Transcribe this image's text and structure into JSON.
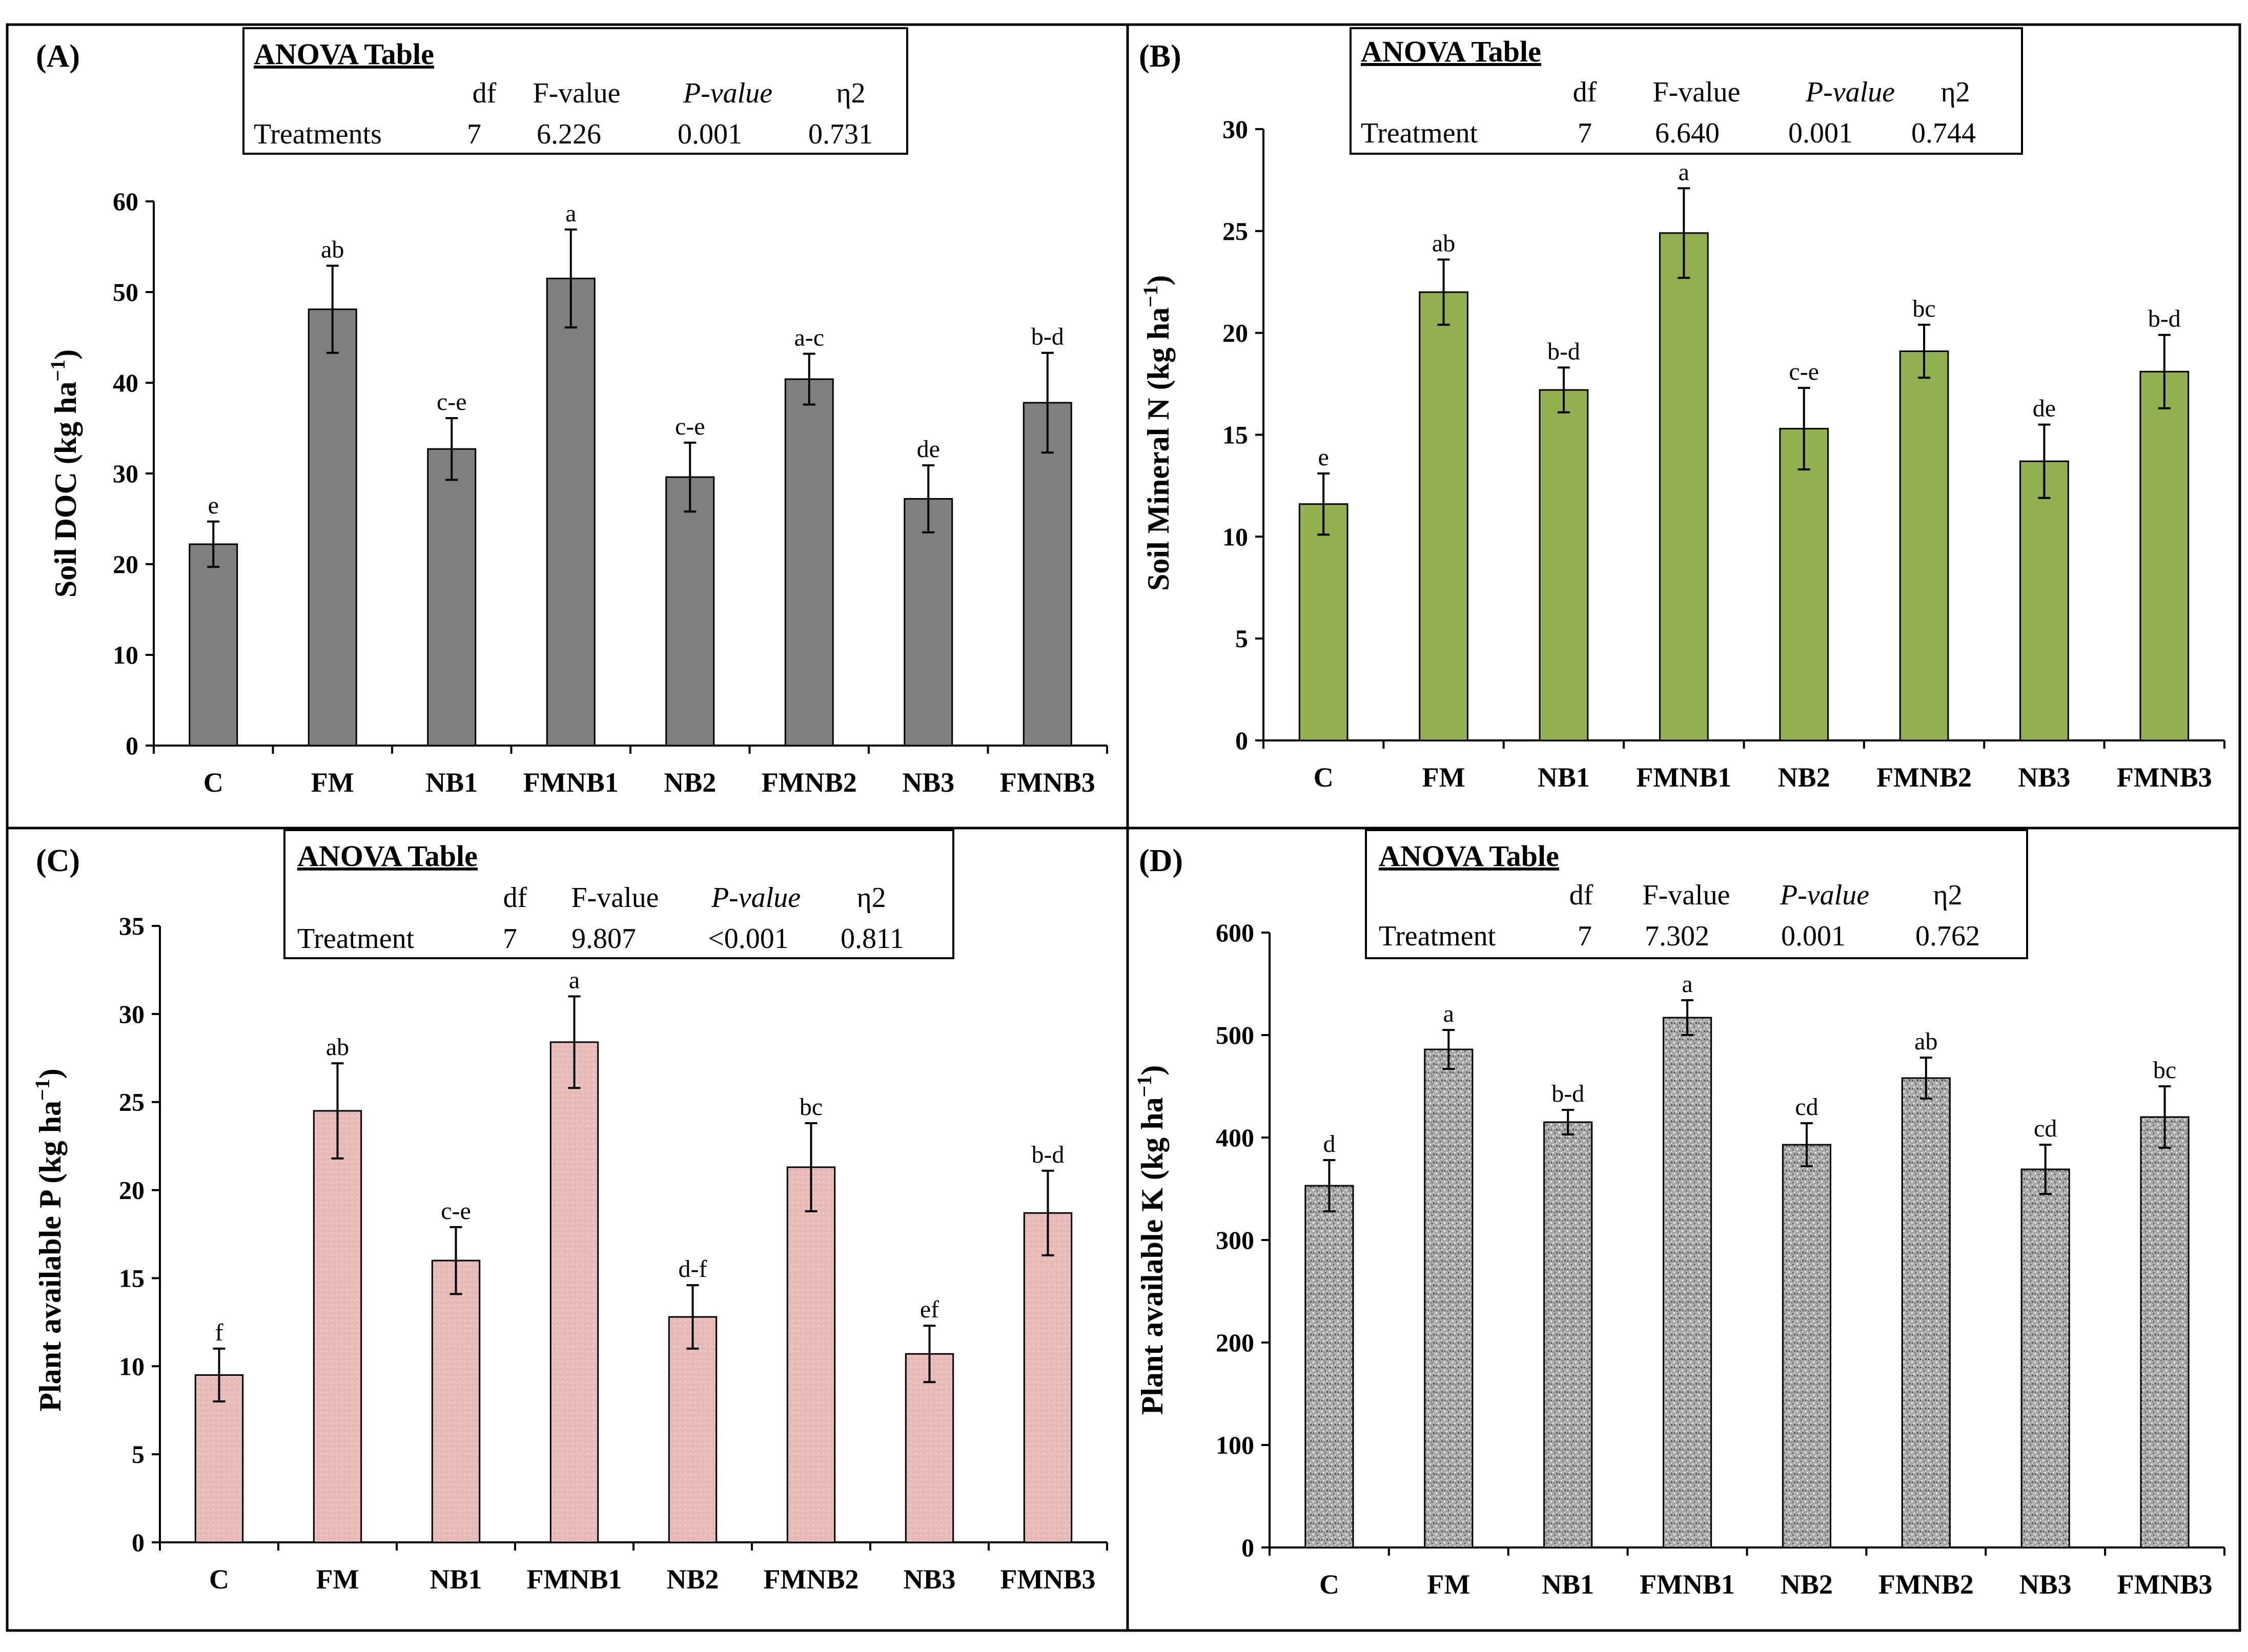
{
  "figure": {
    "panels": [
      {
        "letter": "(A)",
        "anova": {
          "title": "ANOVA Table",
          "headers": [
            "df",
            "F-value",
            "P-value",
            "η2"
          ],
          "row": [
            "Treatments",
            "7",
            "6.226",
            "0.001",
            "0.731"
          ]
        },
        "ylabel_main": "Soil DOC (kg ha",
        "ylabel_exp": "−1",
        "ylabel_tail": ")",
        "bar_color": "#7f7f7f",
        "texture": "solid"
      },
      {
        "letter": "(B)",
        "anova": {
          "title": "ANOVA Table",
          "headers": [
            "df",
            "F-value",
            "P-value",
            "η2"
          ],
          "row": [
            "Treatment",
            "7",
            "6.640",
            "0.001",
            "0.744"
          ]
        },
        "ylabel_main": "Soil Mineral N (kg ha",
        "ylabel_exp": "−1",
        "ylabel_tail": ")",
        "bar_color": "#92b050",
        "texture": "solid"
      },
      {
        "letter": "(C)",
        "anova": {
          "title": "ANOVA Table",
          "headers": [
            "df",
            "F-value",
            "P-value",
            "η2"
          ],
          "row": [
            "Treatment",
            "7",
            "9.807",
            "<0.001",
            "0.811"
          ]
        },
        "ylabel_main": "Plant available P (kg ha",
        "ylabel_exp": "−1",
        "ylabel_tail": ")",
        "bar_color": "#e8b8b8",
        "texture": "pink"
      },
      {
        "letter": "(D)",
        "anova": {
          "title": "ANOVA Table",
          "headers": [
            "df",
            "F-value",
            "P-value",
            "η2"
          ],
          "row": [
            "Treatment",
            "7",
            "7.302",
            "0.001",
            "0.762"
          ]
        },
        "ylabel_main": "Plant available K (kg ha",
        "ylabel_exp": "−1",
        "ylabel_tail": ")",
        "bar_color": "#a6a6a6",
        "texture": "speckle"
      }
    ]
  },
  "chart_data": [
    {
      "type": "bar",
      "title": "",
      "xlabel": "",
      "ylabel": "Soil DOC (kg ha−1)",
      "categories": [
        "C",
        "FM",
        "NB1",
        "FMNB1",
        "NB2",
        "FMNB2",
        "NB3",
        "FMNB3"
      ],
      "values": [
        22.2,
        48.1,
        32.7,
        51.5,
        29.6,
        40.4,
        27.2,
        37.8
      ],
      "errors": [
        2.5,
        4.8,
        3.4,
        5.4,
        3.8,
        2.8,
        3.7,
        5.5
      ],
      "significance": [
        "e",
        "ab",
        "c-e",
        "a",
        "c-e",
        "a-c",
        "de",
        "b-d"
      ],
      "ylim": [
        0,
        60
      ],
      "yticks": [
        0,
        10,
        20,
        30,
        40,
        50,
        60
      ]
    },
    {
      "type": "bar",
      "title": "",
      "xlabel": "",
      "ylabel": "Soil Mineral N (kg ha−1)",
      "categories": [
        "C",
        "FM",
        "NB1",
        "FMNB1",
        "NB2",
        "FMNB2",
        "NB3",
        "FMNB3"
      ],
      "values": [
        11.6,
        22.0,
        17.2,
        24.9,
        15.3,
        19.1,
        13.7,
        18.1
      ],
      "errors": [
        1.5,
        1.6,
        1.1,
        2.2,
        2.0,
        1.3,
        1.8,
        1.8
      ],
      "significance": [
        "e",
        "ab",
        "b-d",
        "a",
        "c-e",
        "bc",
        "de",
        "b-d"
      ],
      "ylim": [
        0,
        30
      ],
      "yticks": [
        0,
        5,
        10,
        15,
        20,
        25,
        30
      ]
    },
    {
      "type": "bar",
      "title": "",
      "xlabel": "",
      "ylabel": "Plant available P (kg ha−1)",
      "categories": [
        "C",
        "FM",
        "NB1",
        "FMNB1",
        "NB2",
        "FMNB2",
        "NB3",
        "FMNB3"
      ],
      "values": [
        9.5,
        24.5,
        16.0,
        28.4,
        12.8,
        21.3,
        10.7,
        18.7
      ],
      "errors": [
        1.5,
        2.7,
        1.9,
        2.6,
        1.8,
        2.5,
        1.6,
        2.4
      ],
      "significance": [
        "f",
        "ab",
        "c-e",
        "a",
        "d-f",
        "bc",
        "ef",
        "b-d"
      ],
      "ylim": [
        0,
        35
      ],
      "yticks": [
        0,
        5,
        10,
        15,
        20,
        25,
        30,
        35
      ]
    },
    {
      "type": "bar",
      "title": "",
      "xlabel": "",
      "ylabel": "Plant available K (kg ha−1)",
      "categories": [
        "C",
        "FM",
        "NB1",
        "FMNB1",
        "NB2",
        "FMNB2",
        "NB3",
        "FMNB3"
      ],
      "values": [
        353,
        486,
        415,
        517,
        393,
        458,
        369,
        420
      ],
      "errors": [
        25,
        19,
        12,
        17,
        21,
        20,
        24,
        30
      ],
      "significance": [
        "d",
        "a",
        "b-d",
        "a",
        "cd",
        "ab",
        "cd",
        "bc"
      ],
      "ylim": [
        0,
        600
      ],
      "yticks": [
        0,
        100,
        200,
        300,
        400,
        500,
        600
      ]
    }
  ]
}
